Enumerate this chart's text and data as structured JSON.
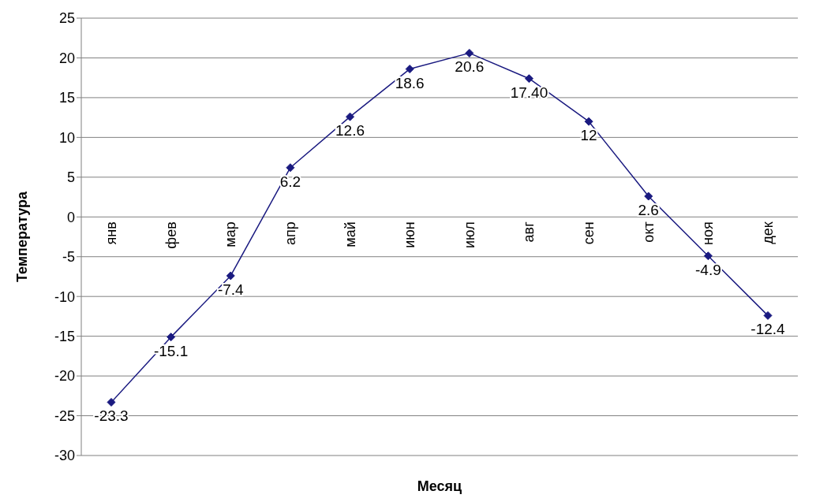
{
  "chart_data": {
    "type": "line",
    "xlabel": "Месяц",
    "ylabel": "Температура",
    "categories": [
      "янв",
      "фев",
      "мар",
      "апр",
      "май",
      "июн",
      "июл",
      "авг",
      "сен",
      "окт",
      "ноя",
      "дек"
    ],
    "series": [
      {
        "color": "#1a1a80",
        "values": [
          -23.3,
          -15.1,
          -7.4,
          6.2,
          12.6,
          18.6,
          20.6,
          17.4,
          12,
          2.6,
          -4.9,
          -12.4
        ],
        "value_labels": [
          "-23.3",
          "-15.1",
          "-7.4",
          "6.2",
          "12.6",
          "18.6",
          "20.6",
          "17.40",
          "12",
          "2.6",
          "-4.9",
          "-12.4"
        ]
      }
    ],
    "ylim": [
      -30,
      25
    ],
    "yticks": [
      -30,
      -25,
      -20,
      -15,
      -10,
      -5,
      0,
      5,
      10,
      15,
      20,
      25
    ],
    "grid": "y",
    "legend": false,
    "marker": "diamond",
    "line_style": "solid"
  }
}
